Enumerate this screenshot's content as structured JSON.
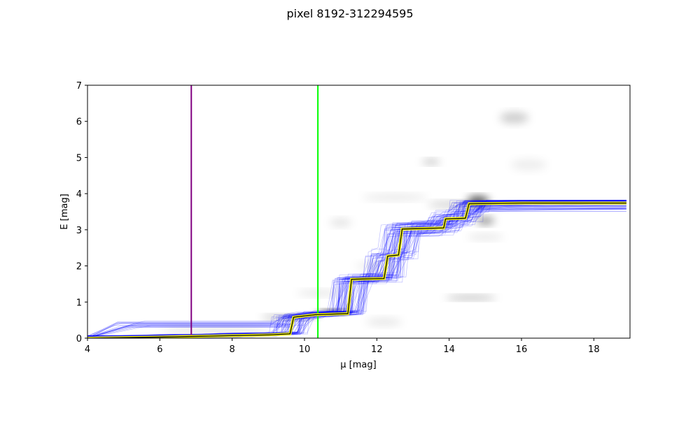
{
  "chart_data": {
    "type": "line",
    "title": "pixel 8192-312294595",
    "xlabel": "μ [mag]",
    "ylabel": "E [mag]",
    "xlim": [
      4,
      19
    ],
    "ylim": [
      0,
      7
    ],
    "xticks": [
      4,
      6,
      8,
      10,
      12,
      14,
      16,
      18
    ],
    "yticks": [
      0,
      1,
      2,
      3,
      4,
      5,
      6,
      7
    ],
    "grid": false,
    "background_density": {
      "description_color": "#000000",
      "blobs": [
        {
          "x": 14.8,
          "y": 3.8,
          "sx": 0.3,
          "sy": 0.12,
          "a": 0.75
        },
        {
          "x": 15.0,
          "y": 3.25,
          "sx": 0.25,
          "sy": 0.1,
          "a": 0.45
        },
        {
          "x": 14.1,
          "y": 3.7,
          "sx": 0.7,
          "sy": 0.08,
          "a": 0.2
        },
        {
          "x": 10.8,
          "y": 0.72,
          "sx": 0.45,
          "sy": 0.06,
          "a": 0.8
        },
        {
          "x": 9.6,
          "y": 0.58,
          "sx": 0.8,
          "sy": 0.06,
          "a": 0.3
        },
        {
          "x": 14.6,
          "y": 1.12,
          "sx": 0.7,
          "sy": 0.06,
          "a": 0.3
        },
        {
          "x": 15.8,
          "y": 6.1,
          "sx": 0.4,
          "sy": 0.15,
          "a": 0.2
        },
        {
          "x": 13.5,
          "y": 4.88,
          "sx": 0.25,
          "sy": 0.07,
          "a": 0.25
        },
        {
          "x": 12.2,
          "y": 0.45,
          "sx": 0.5,
          "sy": 0.1,
          "a": 0.1
        },
        {
          "x": 11.0,
          "y": 3.2,
          "sx": 0.3,
          "sy": 0.1,
          "a": 0.12
        },
        {
          "x": 12.5,
          "y": 3.9,
          "sx": 0.9,
          "sy": 0.08,
          "a": 0.1
        },
        {
          "x": 12.0,
          "y": 2.0,
          "sx": 0.6,
          "sy": 0.1,
          "a": 0.08
        },
        {
          "x": 15.0,
          "y": 2.8,
          "sx": 0.5,
          "sy": 0.08,
          "a": 0.1
        },
        {
          "x": 16.2,
          "y": 4.8,
          "sx": 0.5,
          "sy": 0.15,
          "a": 0.07
        },
        {
          "x": 10.4,
          "y": 1.25,
          "sx": 0.6,
          "sy": 0.08,
          "a": 0.1
        },
        {
          "x": 7.5,
          "y": 0.2,
          "sx": 1.5,
          "sy": 0.1,
          "a": 0.1
        }
      ]
    },
    "vertical_lines": [
      {
        "x": 6.87,
        "color": "#800080"
      },
      {
        "x": 10.37,
        "color": "#00ff00"
      }
    ],
    "best_fit": {
      "color": "#000000",
      "highlight_color": "#ffff00",
      "x": [
        4,
        5.2,
        6.0,
        7.0,
        8.0,
        9.0,
        9.6,
        9.7,
        10.3,
        10.6,
        11.2,
        11.3,
        12.2,
        12.3,
        12.6,
        12.7,
        13.85,
        13.9,
        14.45,
        14.55,
        16.0,
        18.9
      ],
      "y": [
        0.0,
        0.02,
        0.03,
        0.05,
        0.07,
        0.09,
        0.12,
        0.58,
        0.65,
        0.66,
        0.68,
        1.63,
        1.65,
        2.27,
        2.3,
        3.02,
        3.05,
        3.3,
        3.32,
        3.72,
        3.74,
        3.74
      ]
    },
    "samples": {
      "color": "#0000ff",
      "count": 90
    }
  }
}
